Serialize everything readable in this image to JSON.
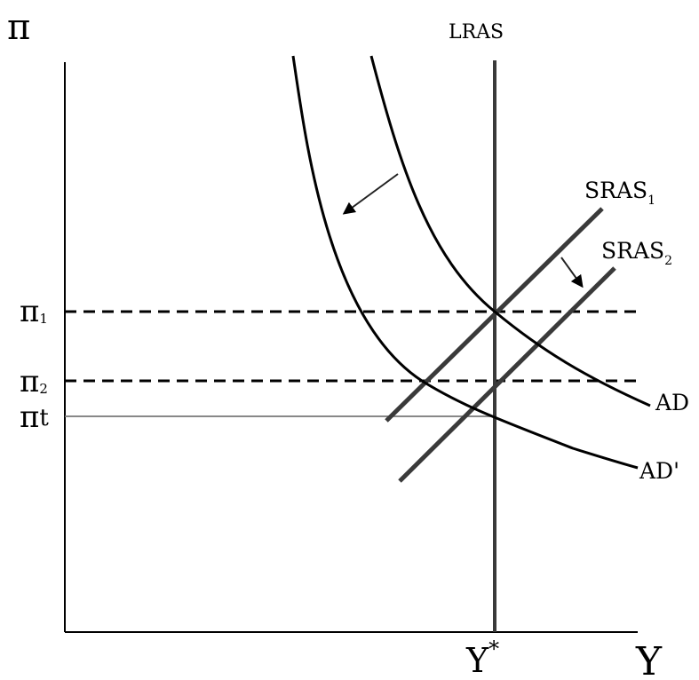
{
  "axes": {
    "y_label": "π",
    "x_label": "Y"
  },
  "curves": {
    "lras": {
      "label": "LRAS"
    },
    "sras1": {
      "label": "SRAS",
      "subscript": "1"
    },
    "sras2": {
      "label": "SRAS",
      "subscript": "2"
    },
    "ad": {
      "label": "AD"
    },
    "ad_prime": {
      "label": "AD'"
    }
  },
  "levels": {
    "pi1": {
      "symbol": "π",
      "subscript": "1"
    },
    "pi2": {
      "symbol": "π",
      "subscript": "2"
    },
    "pit": {
      "symbol": "π",
      "subscript": "t"
    }
  },
  "potential_output": {
    "symbol": "Y",
    "superscript": "*"
  }
}
